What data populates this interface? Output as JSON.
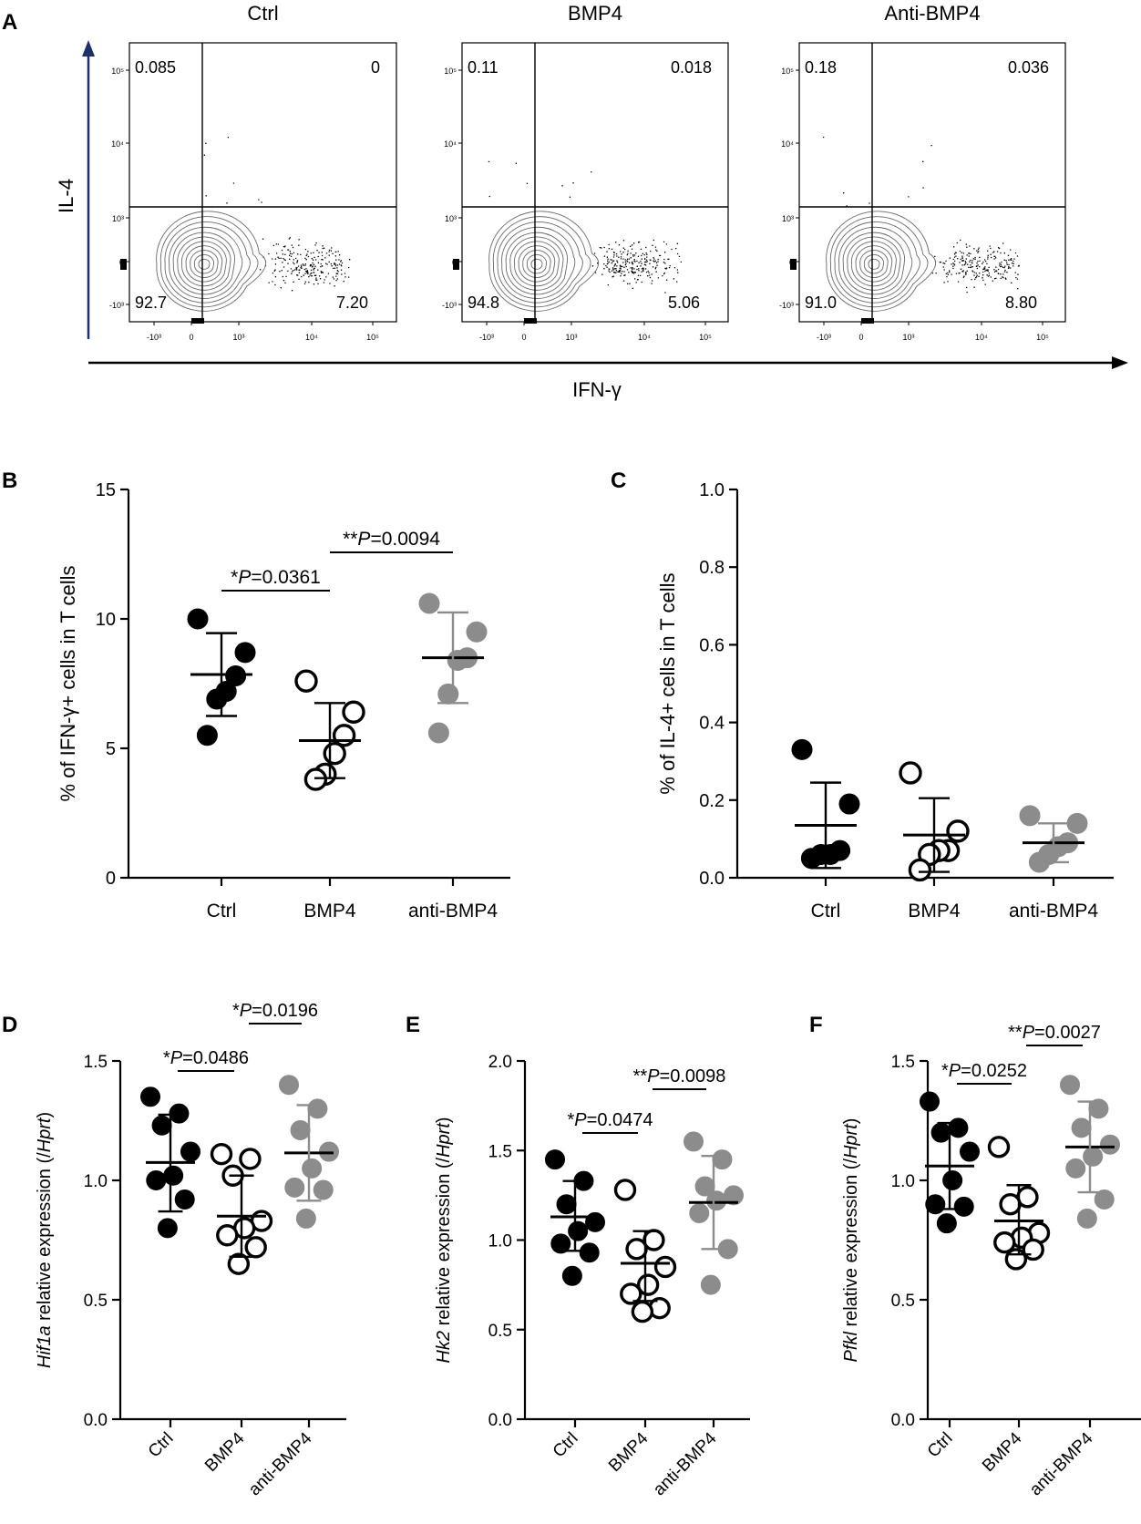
{
  "figure": {
    "panel_labels": [
      "A",
      "B",
      "C",
      "D",
      "E",
      "F"
    ]
  },
  "colors": {
    "ctrl": "#000000",
    "bmp4": "#ffffff",
    "anti": "#8c8c8c",
    "anti_bar": "#8c8c8c",
    "axis_arrow": "#1f2f6b"
  },
  "chart_data": [
    {
      "panel": "A",
      "type": "scatter",
      "subtype": "flow-cytometry-contour",
      "xlabel": "IFN-γ",
      "ylabel": "IL-4",
      "x_ticks": [
        "-10³",
        "0",
        "10³",
        "10⁴",
        "10⁵"
      ],
      "y_ticks": [
        "10⁵",
        "10⁴",
        "10³",
        "0",
        "-10³"
      ],
      "plots": [
        {
          "title": "Ctrl",
          "quadrants": {
            "upper_left": "0.085",
            "upper_right": "0",
            "lower_left": "92.7",
            "lower_right": "7.20"
          }
        },
        {
          "title": "BMP4",
          "quadrants": {
            "upper_left": "0.11",
            "upper_right": "0.018",
            "lower_left": "94.8",
            "lower_right": "5.06"
          }
        },
        {
          "title": "Anti-BMP4",
          "quadrants": {
            "upper_left": "0.18",
            "upper_right": "0.036",
            "lower_left": "91.0",
            "lower_right": "8.80"
          }
        }
      ]
    },
    {
      "panel": "B",
      "type": "scatter",
      "ylabel": "% of IFN-γ+ cells in T cells",
      "ylim": [
        0,
        15
      ],
      "yticks": [
        0,
        5,
        10,
        15
      ],
      "ytick_labels": [
        "0",
        "5",
        "10",
        "15"
      ],
      "categories": [
        "Ctrl",
        "BMP4",
        "anti-BMP4"
      ],
      "groups": [
        {
          "style": "ctrl",
          "values": [
            10.0,
            8.7,
            7.8,
            7.2,
            6.9,
            5.5
          ],
          "mean": 7.85,
          "sd_low": 6.25,
          "sd_high": 9.45
        },
        {
          "style": "bmp4",
          "values": [
            7.6,
            6.4,
            5.5,
            4.8,
            4.0,
            3.8
          ],
          "mean": 5.3,
          "sd_low": 3.85,
          "sd_high": 6.75
        },
        {
          "style": "anti",
          "values": [
            10.6,
            9.5,
            8.5,
            8.4,
            7.1,
            5.6
          ],
          "mean": 8.5,
          "sd_low": 6.75,
          "sd_high": 10.25
        }
      ],
      "annotations": [
        {
          "prefix": "*",
          "p_label": "P",
          "rest": "=0.0361",
          "from": 0,
          "to": 1,
          "level": 0
        },
        {
          "prefix": "**",
          "p_label": "P",
          "rest": "=0.0094",
          "from": 1,
          "to": 2,
          "level": 1
        }
      ]
    },
    {
      "panel": "C",
      "type": "scatter",
      "ylabel": "% of IL-4+ cells in T cells",
      "ylim": [
        0,
        1.0
      ],
      "yticks": [
        0,
        0.2,
        0.4,
        0.6,
        0.8,
        1.0
      ],
      "ytick_labels": [
        "0.0",
        "0.2",
        "0.4",
        "0.6",
        "0.8",
        "1.0"
      ],
      "categories": [
        "Ctrl",
        "BMP4",
        "anti-BMP4"
      ],
      "groups": [
        {
          "style": "ctrl",
          "values": [
            0.33,
            0.19,
            0.07,
            0.06,
            0.06,
            0.05
          ],
          "mean": 0.135,
          "sd_low": 0.025,
          "sd_high": 0.245
        },
        {
          "style": "bmp4",
          "values": [
            0.27,
            0.12,
            0.07,
            0.07,
            0.06,
            0.02
          ],
          "mean": 0.11,
          "sd_low": 0.015,
          "sd_high": 0.205
        },
        {
          "style": "anti",
          "values": [
            0.16,
            0.14,
            0.09,
            0.08,
            0.06,
            0.04
          ],
          "mean": 0.09,
          "sd_low": 0.04,
          "sd_high": 0.14
        }
      ],
      "annotations": []
    },
    {
      "panel": "D",
      "type": "scatter",
      "ylabel_gene": "Hif1a",
      "ylabel_mid": " relative expression (/",
      "ylabel_ref": "Hprt",
      "ylabel_end": ")",
      "ylim": [
        0,
        1.5
      ],
      "yticks": [
        0,
        0.5,
        1.0,
        1.5
      ],
      "ytick_labels": [
        "0.0",
        "0.5",
        "1.0",
        "1.5"
      ],
      "categories": [
        "Ctrl",
        "BMP4",
        "anti-BMP4"
      ],
      "groups": [
        {
          "style": "ctrl",
          "values": [
            1.35,
            1.28,
            1.23,
            1.12,
            1.02,
            1.0,
            0.92,
            0.8
          ],
          "mean": 1.075,
          "sd_low": 0.87,
          "sd_high": 1.275
        },
        {
          "style": "bmp4",
          "values": [
            1.11,
            1.09,
            1.02,
            0.83,
            0.8,
            0.77,
            0.72,
            0.65
          ],
          "mean": 0.85,
          "sd_low": 0.68,
          "sd_high": 1.02
        },
        {
          "style": "anti",
          "values": [
            1.4,
            1.3,
            1.21,
            1.12,
            1.05,
            0.97,
            0.96,
            0.84
          ],
          "mean": 1.115,
          "sd_low": 0.915,
          "sd_high": 1.315
        }
      ],
      "annotations": [
        {
          "prefix": "*",
          "p_label": "P",
          "rest": "=0.0486",
          "from": 0,
          "to": 1,
          "level": 0
        },
        {
          "prefix": "*",
          "p_label": "P",
          "rest": "=0.0196",
          "from": 1,
          "to": 2,
          "level": 1
        }
      ]
    },
    {
      "panel": "E",
      "type": "scatter",
      "ylabel_gene": "Hk2",
      "ylabel_mid": " relative expression (/",
      "ylabel_ref": "Hprt",
      "ylabel_end": ")",
      "ylim": [
        0,
        2.0
      ],
      "yticks": [
        0,
        0.5,
        1.0,
        1.5,
        2.0
      ],
      "ytick_labels": [
        "0.0",
        "0.5",
        "1.0",
        "1.5",
        "2.0"
      ],
      "categories": [
        "Ctrl",
        "BMP4",
        "anti-BMP4"
      ],
      "groups": [
        {
          "style": "ctrl",
          "values": [
            1.45,
            1.33,
            1.2,
            1.1,
            1.05,
            0.98,
            0.93,
            0.8
          ],
          "mean": 1.13,
          "sd_low": 0.94,
          "sd_high": 1.33
        },
        {
          "style": "bmp4",
          "values": [
            1.28,
            1.0,
            0.95,
            0.85,
            0.75,
            0.7,
            0.62,
            0.6
          ],
          "mean": 0.87,
          "sd_low": 0.66,
          "sd_high": 1.05
        },
        {
          "style": "anti",
          "values": [
            1.55,
            1.45,
            1.3,
            1.25,
            1.22,
            1.15,
            0.95,
            0.75
          ],
          "mean": 1.21,
          "sd_low": 0.95,
          "sd_high": 1.47
        }
      ],
      "annotations": [
        {
          "prefix": "*",
          "p_label": "P",
          "rest": "=0.0474",
          "from": 0,
          "to": 1,
          "level": 0
        },
        {
          "prefix": "**",
          "p_label": "P",
          "rest": "=0.0098",
          "from": 1,
          "to": 2,
          "level": 1
        }
      ]
    },
    {
      "panel": "F",
      "type": "scatter",
      "ylabel_gene": "Pfkl",
      "ylabel_mid": " relative expression (/",
      "ylabel_ref": "Hprt",
      "ylabel_end": ")",
      "ylim": [
        0,
        1.5
      ],
      "yticks": [
        0,
        0.5,
        1.0,
        1.5
      ],
      "ytick_labels": [
        "0.0",
        "0.5",
        "1.0",
        "1.5"
      ],
      "categories": [
        "Ctrl",
        "BMP4",
        "anti-BMP4"
      ],
      "groups": [
        {
          "style": "ctrl",
          "values": [
            1.33,
            1.22,
            1.2,
            1.12,
            1.0,
            0.9,
            0.89,
            0.82
          ],
          "mean": 1.06,
          "sd_low": 0.88,
          "sd_high": 1.24
        },
        {
          "style": "bmp4",
          "values": [
            1.14,
            0.93,
            0.9,
            0.78,
            0.76,
            0.74,
            0.71,
            0.67
          ],
          "mean": 0.83,
          "sd_low": 0.69,
          "sd_high": 0.98
        },
        {
          "style": "anti",
          "values": [
            1.4,
            1.3,
            1.22,
            1.15,
            1.1,
            1.05,
            0.92,
            0.84
          ],
          "mean": 1.14,
          "sd_low": 0.95,
          "sd_high": 1.33
        }
      ],
      "annotations": [
        {
          "prefix": "*",
          "p_label": "P",
          "rest": "=0.0252",
          "from": 0,
          "to": 1,
          "level": 0
        },
        {
          "prefix": "**",
          "p_label": "P",
          "rest": "=0.0027",
          "from": 1,
          "to": 2,
          "level": 1
        }
      ]
    }
  ]
}
